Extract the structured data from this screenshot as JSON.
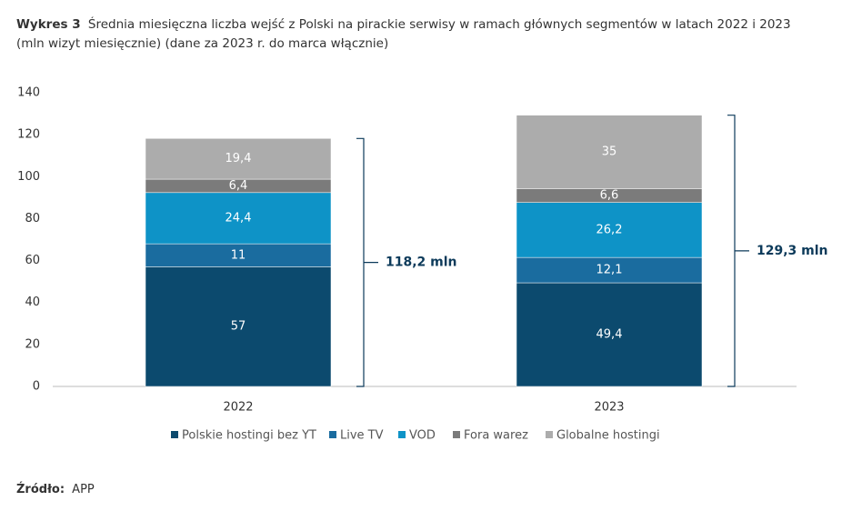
{
  "chart_data": {
    "type": "stacked_bar",
    "title_prefix": "Wykres 3",
    "title": "Średnia miesięczna liczba wejść z Polski na pirackie serwisy w ramach głównych segmentów w latach 2022 i 2023",
    "subtitle": "(mln wizyt miesięcznie) (dane za 2023 r. do marca włącznie)",
    "categories": [
      "2022",
      "2023"
    ],
    "series": [
      {
        "name": "Polskie hostingi bez YT",
        "color": "#0c4a6e",
        "values": [
          57,
          49.4
        ],
        "value_labels": [
          "57",
          "49,4"
        ]
      },
      {
        "name": "Live TV",
        "color": "#1a6c9f",
        "values": [
          11,
          12.1
        ],
        "value_labels": [
          "11",
          "12,1"
        ]
      },
      {
        "name": "VOD",
        "color": "#0e93c7",
        "values": [
          24.4,
          26.2
        ],
        "value_labels": [
          "24,4",
          "26,2"
        ]
      },
      {
        "name": "Fora warez",
        "color": "#7b7b7b",
        "values": [
          6.4,
          6.6
        ],
        "value_labels": [
          "6,4",
          "6,6"
        ]
      },
      {
        "name": "Globalne hostingi",
        "color": "#acacac",
        "values": [
          19.4,
          35
        ],
        "value_labels": [
          "19,4",
          "35"
        ]
      }
    ],
    "annotations": [
      {
        "value": 118.2,
        "label": "118,2 mln"
      },
      {
        "value": 129.3,
        "label": "129,3 mln"
      }
    ],
    "ylim": [
      0,
      140
    ],
    "yticks": [
      0,
      20,
      40,
      60,
      80,
      100,
      120,
      140
    ],
    "grid": false,
    "legend": "bottom",
    "source_label": "Źródło:",
    "source": "APP"
  }
}
